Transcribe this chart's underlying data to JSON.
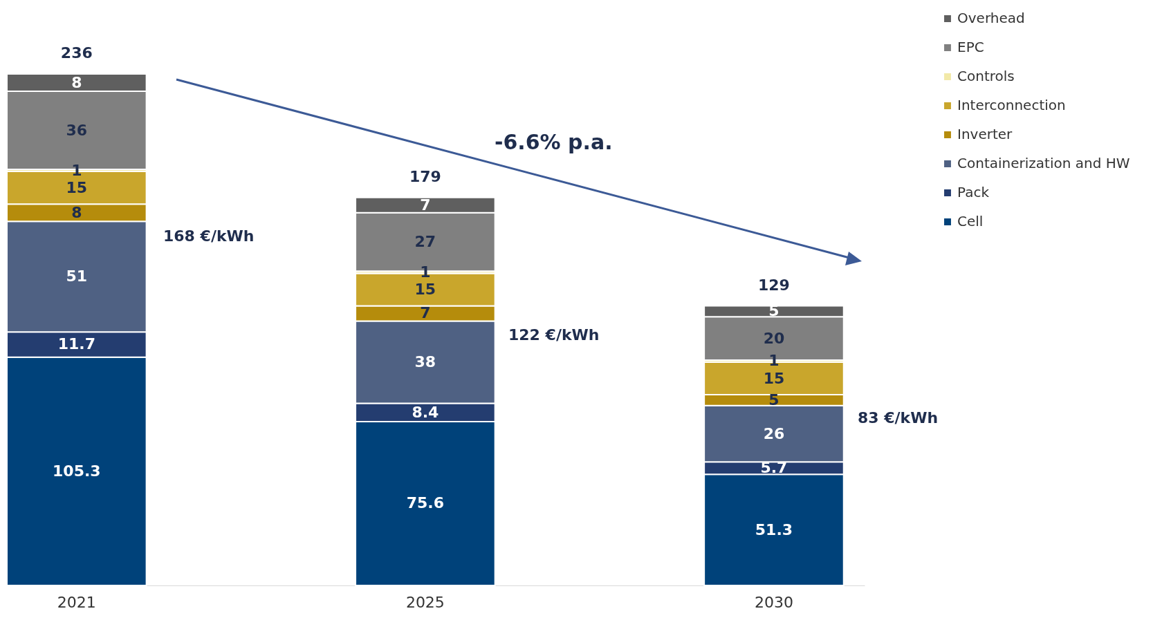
{
  "chart_data": {
    "type": "bar",
    "stacked": true,
    "categories": [
      "2021",
      "2025",
      "2030"
    ],
    "series": [
      {
        "name": "Cell",
        "color": "#00427a",
        "values": [
          105.3,
          75.6,
          51.3
        ]
      },
      {
        "name": "Pack",
        "color": "#243d70",
        "values": [
          11.7,
          8.4,
          5.7
        ]
      },
      {
        "name": "Containerization and HW",
        "color": "#4f6183",
        "values": [
          51,
          38,
          26
        ]
      },
      {
        "name": "Inverter",
        "color": "#b58c0c",
        "values": [
          8,
          7,
          5
        ]
      },
      {
        "name": "Interconnection",
        "color": "#c9a62c",
        "values": [
          15,
          15,
          15
        ]
      },
      {
        "name": "Controls",
        "color": "#f2e9a8",
        "values": [
          1,
          1,
          1
        ]
      },
      {
        "name": "EPC",
        "color": "#808080",
        "values": [
          36,
          27,
          20
        ]
      },
      {
        "name": "Overhead",
        "color": "#5f5f5f",
        "values": [
          8,
          7,
          5
        ]
      }
    ],
    "data_labels": true,
    "totals": [
      "236",
      "179",
      "129"
    ],
    "annotations": [
      "168 €/kWh",
      "122 €/kWh",
      "83 €/kWh",
      "-6.6% p.a."
    ],
    "legend": "top right",
    "grid": false
  }
}
